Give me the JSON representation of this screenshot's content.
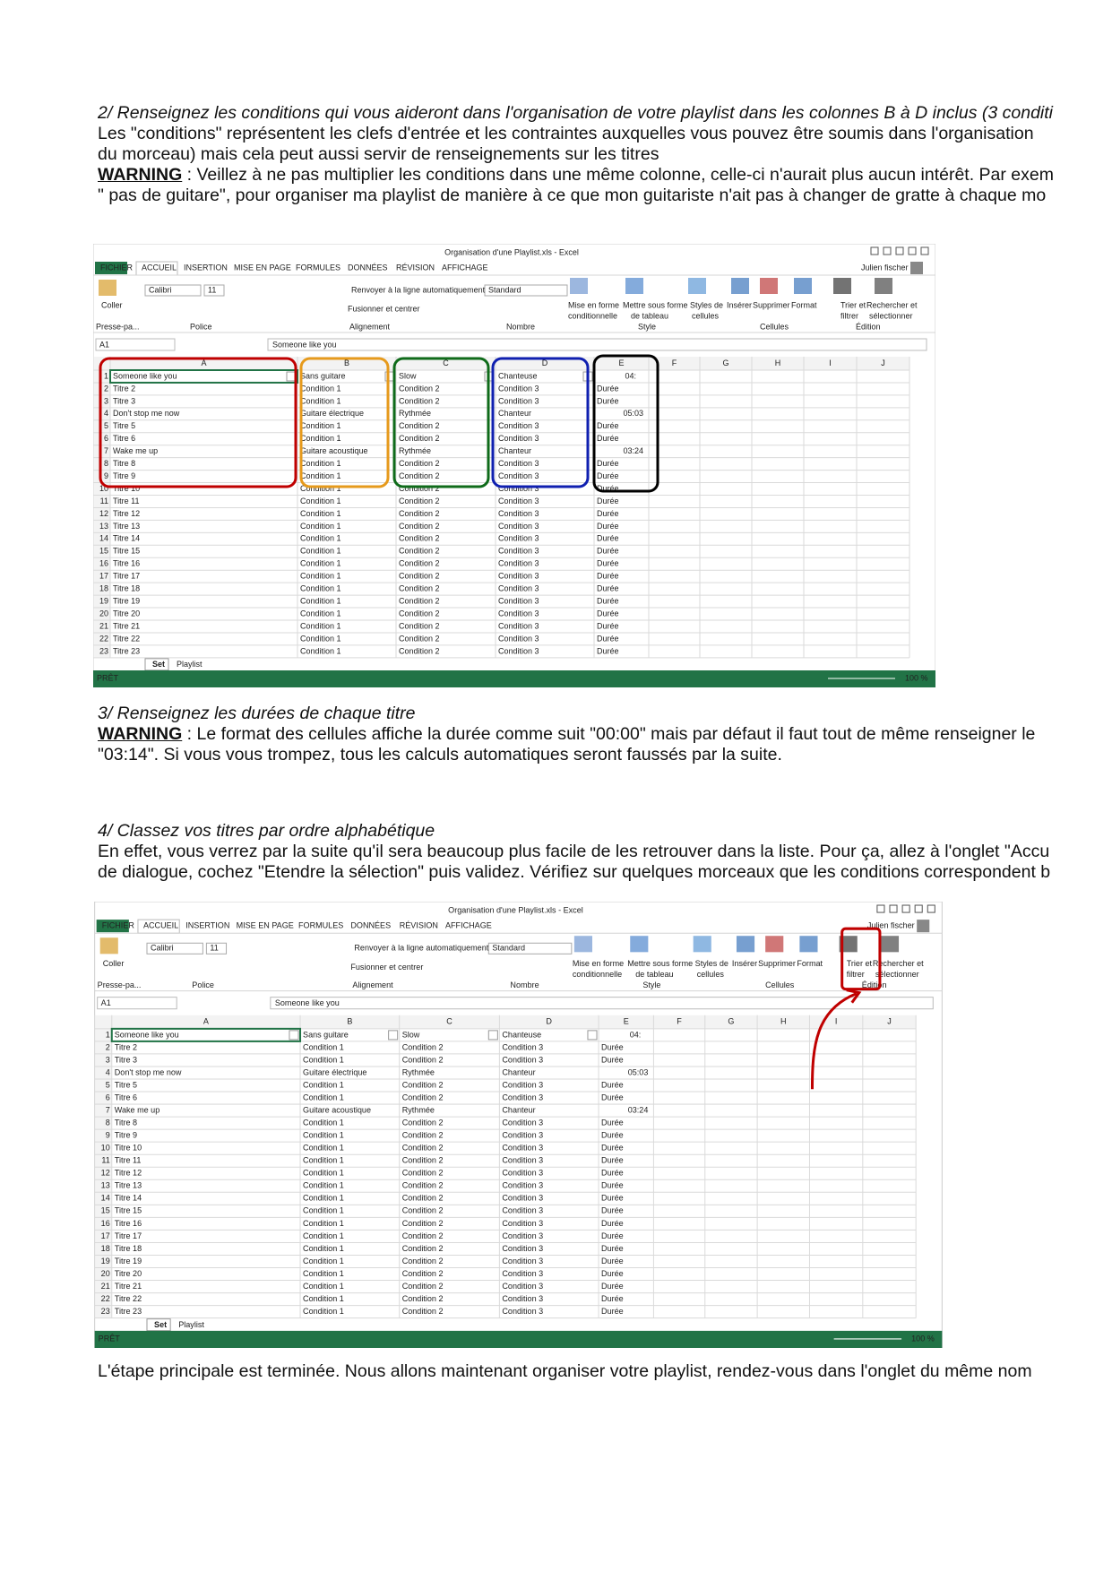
{
  "intro": {
    "heading": "2/ Renseignez les conditions qui vous aideront dans l'organisation de votre playlist dans les colonnes B à D inclus (3 conditi",
    "lines": [
      "Les \"conditions\" représentent les clefs d'entrée et les contraintes auxquelles vous pouvez être soumis dans l'organisation",
      "du morceau) mais cela peut aussi servir de renseignements sur les titres"
    ],
    "warning_label": "WARNING",
    "warning_lines": [
      " : Veillez à ne pas multiplier les conditions dans une même colonne, celle-ci n'aurait plus aucun intérêt. Par exem",
      "\" pas de guitare\", pour organiser ma playlist de manière à ce que mon guitariste n'ait pas à changer de gratte à chaque mo"
    ]
  },
  "durations": {
    "heading": "3/ Renseignez les durées de chaque titre",
    "warning_label": "WARNING",
    "warning_lines": [
      " : Le format des cellules affiche la durée comme suit \"00:00\" mais par défaut il faut tout de même renseigner le",
      "\"03:14\". Si vous vous trompez, tous les calculs automatiques seront faussés par la suite."
    ]
  },
  "sorting": {
    "heading": "4/ Classez vos titres par ordre alphabétique",
    "lines": [
      "En effet, vous verrez par la suite qu'il sera beaucoup plus facile de les retrouver dans la liste. Pour ça, allez à l'onglet \"Accu",
      "de dialogue, cochez \"Etendre la sélection\" puis validez. Vérifiez sur quelques morceaux que les conditions correspondent b"
    ]
  },
  "conclusion": "L'étape principale est terminée. Nous allons maintenant organiser votre playlist, rendez-vous dans l'onglet du même nom",
  "excel": {
    "window_title": "Organisation d'une Playlist.xls - Excel",
    "tabs": [
      "FICHIER",
      "ACCUEIL",
      "INSERTION",
      "MISE EN PAGE",
      "FORMULES",
      "DONNÉES",
      "RÉVISION",
      "AFFICHAGE"
    ],
    "user": "Julien fischer",
    "ribbon_labels": [
      "Coller",
      "Calibri",
      "11",
      "Renvoyer à la ligne automatiquement",
      "Fusionner et centrer",
      "Standard",
      "Mise en forme",
      "conditionnelle",
      "Mettre sous forme",
      "de tableau",
      "Styles de",
      "cellules",
      "Insérer",
      "Supprimer",
      "Format",
      "Trier et",
      "filtrer",
      "Rechercher et",
      "sélectionner"
    ],
    "group_labels": [
      "Presse-pa...",
      "Police",
      "Alignement",
      "Nombre",
      "Style",
      "Cellules",
      "Édition"
    ],
    "name_box": "A1",
    "formula": "Someone like you",
    "column_headers": [
      "A",
      "B",
      "C",
      "D",
      "E",
      "F",
      "G",
      "H",
      "I",
      "J"
    ],
    "row_numbers": [
      1,
      2,
      3,
      4,
      5,
      6,
      7,
      8,
      9,
      10,
      11,
      12,
      13,
      14,
      15,
      16,
      17,
      18,
      19,
      20,
      21,
      22,
      23
    ],
    "rows": [
      [
        "Someone like you",
        "Sans guitare",
        "Slow",
        "Chanteuse",
        "04:"
      ],
      [
        "Titre 2",
        "Condition 1",
        "Condition 2",
        "Condition 3",
        "Durée"
      ],
      [
        "Titre 3",
        "Condition 1",
        "Condition 2",
        "Condition 3",
        "Durée"
      ],
      [
        "Don't stop me now",
        "Guitare électrique",
        "Rythmée",
        "Chanteur",
        "05:03"
      ],
      [
        "Titre 5",
        "Condition 1",
        "Condition 2",
        "Condition 3",
        "Durée"
      ],
      [
        "Titre 6",
        "Condition 1",
        "Condition 2",
        "Condition 3",
        "Durée"
      ],
      [
        "Wake me up",
        "Guitare acoustique",
        "Rythmée",
        "Chanteur",
        "03:24"
      ],
      [
        "Titre 8",
        "Condition 1",
        "Condition 2",
        "Condition 3",
        "Durée"
      ],
      [
        "Titre 9",
        "Condition 1",
        "Condition 2",
        "Condition 3",
        "Durée"
      ],
      [
        "Titre 10",
        "Condition 1",
        "Condition 2",
        "Condition 3",
        "Durée"
      ],
      [
        "Titre 11",
        "Condition 1",
        "Condition 2",
        "Condition 3",
        "Durée"
      ],
      [
        "Titre 12",
        "Condition 1",
        "Condition 2",
        "Condition 3",
        "Durée"
      ],
      [
        "Titre 13",
        "Condition 1",
        "Condition 2",
        "Condition 3",
        "Durée"
      ],
      [
        "Titre 14",
        "Condition 1",
        "Condition 2",
        "Condition 3",
        "Durée"
      ],
      [
        "Titre 15",
        "Condition 1",
        "Condition 2",
        "Condition 3",
        "Durée"
      ],
      [
        "Titre 16",
        "Condition 1",
        "Condition 2",
        "Condition 3",
        "Durée"
      ],
      [
        "Titre 17",
        "Condition 1",
        "Condition 2",
        "Condition 3",
        "Durée"
      ],
      [
        "Titre 18",
        "Condition 1",
        "Condition 2",
        "Condition 3",
        "Durée"
      ],
      [
        "Titre 19",
        "Condition 1",
        "Condition 2",
        "Condition 3",
        "Durée"
      ],
      [
        "Titre 20",
        "Condition 1",
        "Condition 2",
        "Condition 3",
        "Durée"
      ],
      [
        "Titre 21",
        "Condition 1",
        "Condition 2",
        "Condition 3",
        "Durée"
      ],
      [
        "Titre 22",
        "Condition 1",
        "Condition 2",
        "Condition 3",
        "Durée"
      ],
      [
        "Titre 23",
        "Condition 1",
        "Condition 2",
        "Condition 3",
        "Durée"
      ]
    ],
    "sheet_tabs": [
      "Set",
      "Playlist"
    ],
    "status": "PRÊT",
    "zoom": "100 %"
  }
}
